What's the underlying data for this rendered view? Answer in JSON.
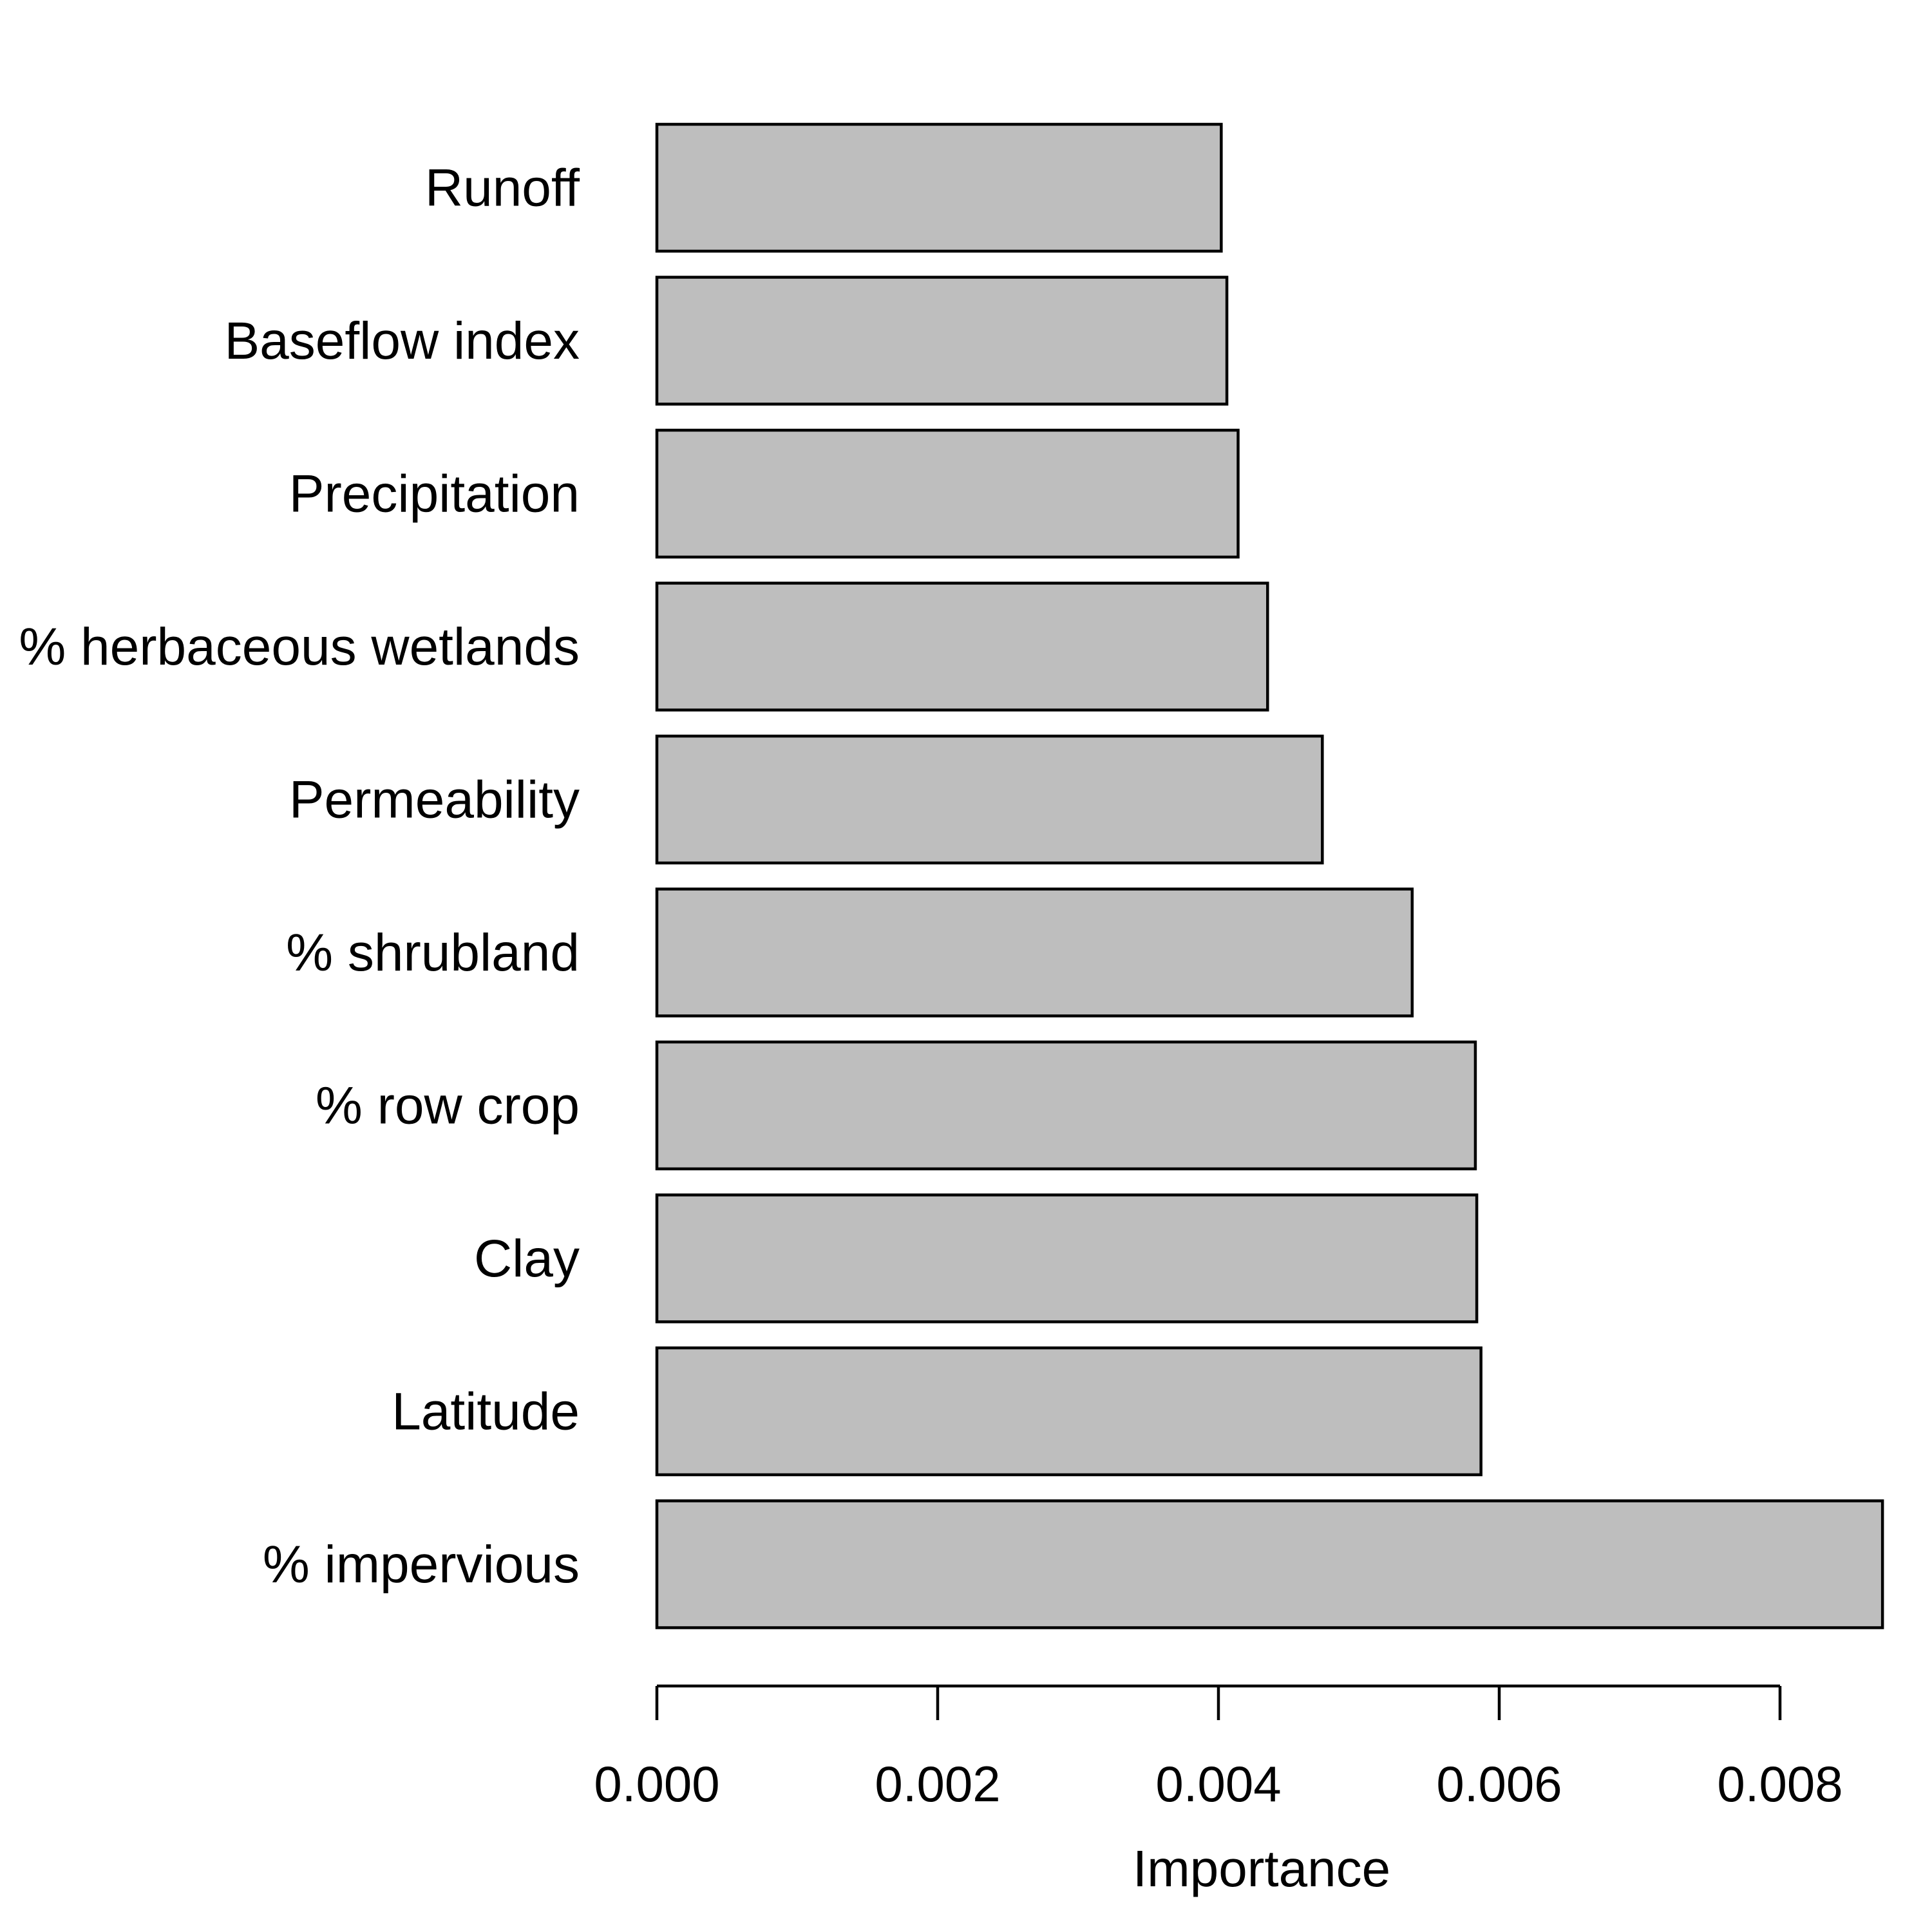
{
  "chart_data": {
    "type": "bar",
    "orientation": "horizontal",
    "categories": [
      "Runoff",
      "Baseflow index",
      "Precipitation",
      "% herbaceous wetlands",
      "Permeability",
      "% shrubland",
      "% row crop",
      "Clay",
      "Latitude",
      "% impervious"
    ],
    "values": [
      0.00402,
      0.00406,
      0.00414,
      0.00435,
      0.00474,
      0.00538,
      0.00583,
      0.00584,
      0.00587,
      0.00873
    ],
    "xlabel": "Importance",
    "ylabel": "",
    "xlim": [
      0,
      0.008
    ],
    "xticks": [
      0,
      0.002,
      0.004,
      0.006,
      0.008
    ],
    "xtick_labels": [
      "0.000",
      "0.002",
      "0.004",
      "0.006",
      "0.008"
    ],
    "bar_color": "#bebebe",
    "bar_edge_color": "#000000",
    "grid": false,
    "legend": "none"
  }
}
